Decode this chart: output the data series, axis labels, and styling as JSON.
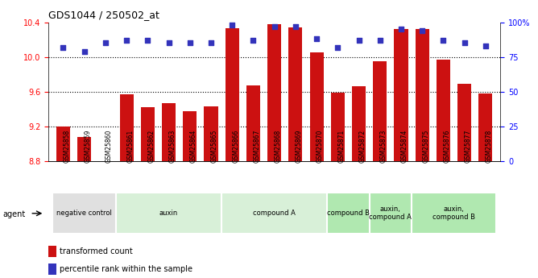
{
  "title": "GDS1044 / 250502_at",
  "samples": [
    "GSM25858",
    "GSM25859",
    "GSM25860",
    "GSM25861",
    "GSM25862",
    "GSM25863",
    "GSM25864",
    "GSM25865",
    "GSM25866",
    "GSM25867",
    "GSM25868",
    "GSM25869",
    "GSM25870",
    "GSM25871",
    "GSM25872",
    "GSM25873",
    "GSM25874",
    "GSM25875",
    "GSM25876",
    "GSM25877",
    "GSM25878"
  ],
  "bar_values": [
    9.2,
    9.08,
    8.8,
    9.57,
    9.42,
    9.47,
    9.38,
    9.43,
    10.33,
    9.67,
    10.38,
    10.34,
    10.05,
    9.59,
    9.66,
    9.95,
    10.32,
    10.32,
    9.97,
    9.69,
    9.58
  ],
  "percentile_values": [
    82,
    79,
    85,
    87,
    87,
    85,
    85,
    85,
    98,
    87,
    97,
    97,
    88,
    82,
    87,
    87,
    95,
    94,
    87,
    85,
    83
  ],
  "ylim_left": [
    8.8,
    10.4
  ],
  "ylim_right": [
    0,
    100
  ],
  "yticks_left": [
    8.8,
    9.2,
    9.6,
    10.0,
    10.4
  ],
  "yticks_right": [
    0,
    25,
    50,
    75,
    100
  ],
  "bar_color": "#cc1111",
  "dot_color": "#3333bb",
  "groups": [
    {
      "label": "negative control",
      "start": 0,
      "end": 3,
      "color": "#e0e0e0"
    },
    {
      "label": "auxin",
      "start": 3,
      "end": 8,
      "color": "#d8f0d8"
    },
    {
      "label": "compound A",
      "start": 8,
      "end": 13,
      "color": "#d8f0d8"
    },
    {
      "label": "compound B",
      "start": 13,
      "end": 15,
      "color": "#b0e8b0"
    },
    {
      "label": "auxin,\ncompound A",
      "start": 15,
      "end": 17,
      "color": "#b0e8b0"
    },
    {
      "label": "auxin,\ncompound B",
      "start": 17,
      "end": 21,
      "color": "#b0e8b0"
    }
  ],
  "legend_bar_label": "transformed count",
  "legend_dot_label": "percentile rank within the sample",
  "agent_label": "agent"
}
